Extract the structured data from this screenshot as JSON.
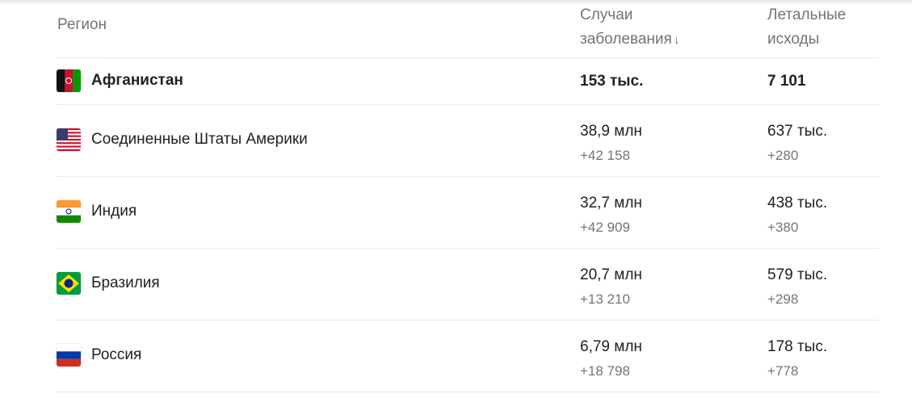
{
  "header": {
    "region": "Регион",
    "cases_line1": "Случаи",
    "cases_line2": "заболевания",
    "sort_icon": "arrow-down-icon",
    "deaths_line1": "Летальные",
    "deaths_line2": "исходы"
  },
  "rows": [
    {
      "name": "Афганистан",
      "flag": "afghanistan",
      "cases": "153 тыс.",
      "deaths": "7 101"
    },
    {
      "name": "Соединенные Штаты Америки",
      "flag": "usa",
      "cases": "38,9 млн",
      "cases_new": "+42 158",
      "deaths": "637 тыс.",
      "deaths_new": "+280"
    },
    {
      "name": "Индия",
      "flag": "india",
      "cases": "32,7 млн",
      "cases_new": "+42 909",
      "deaths": "438 тыс.",
      "deaths_new": "+380"
    },
    {
      "name": "Бразилия",
      "flag": "brazil",
      "cases": "20,7 млн",
      "cases_new": "+13 210",
      "deaths": "579 тыс.",
      "deaths_new": "+298"
    },
    {
      "name": "Россия",
      "flag": "russia",
      "cases": "6,79 млн",
      "cases_new": "+18 798",
      "deaths": "178 тыс.",
      "deaths_new": "+778"
    }
  ]
}
